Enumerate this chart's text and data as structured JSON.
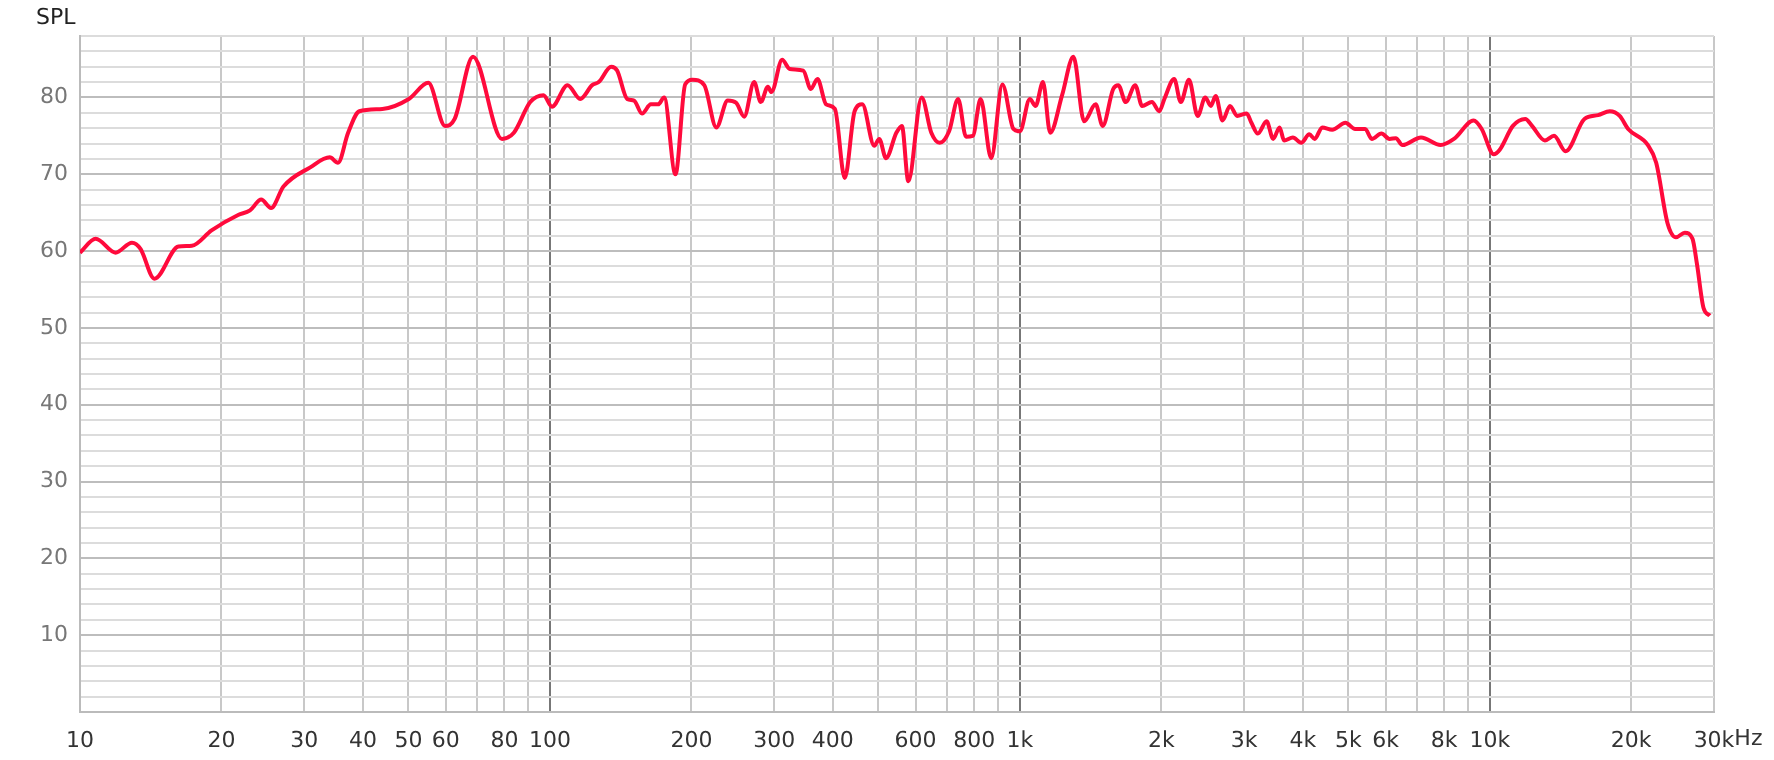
{
  "chart_data": {
    "type": "line",
    "ylabel": "SPL",
    "log": "x",
    "grid": true,
    "legend": false,
    "marker": "none",
    "line_style": "solid",
    "xlim": [
      10,
      30000
    ],
    "xticks": [
      {
        "value": 10,
        "label": "10"
      },
      {
        "value": 20,
        "label": "20"
      },
      {
        "value": 30,
        "label": "30"
      },
      {
        "value": 40,
        "label": "40"
      },
      {
        "value": 50,
        "label": "50"
      },
      {
        "value": 60,
        "label": "60"
      },
      {
        "value": 70,
        "label": null
      },
      {
        "value": 80,
        "label": "80"
      },
      {
        "value": 90,
        "label": null
      },
      {
        "value": 100,
        "label": "100"
      },
      {
        "value": 200,
        "label": "200"
      },
      {
        "value": 300,
        "label": "300"
      },
      {
        "value": 400,
        "label": "400"
      },
      {
        "value": 500,
        "label": null
      },
      {
        "value": 600,
        "label": "600"
      },
      {
        "value": 700,
        "label": null
      },
      {
        "value": 800,
        "label": "800"
      },
      {
        "value": 900,
        "label": null
      },
      {
        "value": 1000,
        "label": "1k"
      },
      {
        "value": 2000,
        "label": "2k"
      },
      {
        "value": 3000,
        "label": "3k"
      },
      {
        "value": 4000,
        "label": "4k"
      },
      {
        "value": 5000,
        "label": "5k"
      },
      {
        "value": 6000,
        "label": "6k"
      },
      {
        "value": 7000,
        "label": null
      },
      {
        "value": 8000,
        "label": "8k"
      },
      {
        "value": 9000,
        "label": null
      },
      {
        "value": 10000,
        "label": "10k"
      },
      {
        "value": 20000,
        "label": "20k"
      },
      {
        "value": 30000,
        "label": "30k"
      }
    ],
    "xlabel": "Hz",
    "ylim": [
      0,
      88
    ],
    "yticks": [
      {
        "value": 0,
        "label": null
      },
      {
        "value": 2,
        "label": null
      },
      {
        "value": 4,
        "label": null
      },
      {
        "value": 6,
        "label": null
      },
      {
        "value": 8,
        "label": null
      },
      10,
      {
        "value": 12,
        "label": null
      },
      {
        "value": 14,
        "label": null
      },
      {
        "value": 16,
        "label": null
      },
      {
        "value": 18,
        "label": null
      },
      20,
      {
        "value": 22,
        "label": null
      },
      {
        "value": 24,
        "label": null
      },
      {
        "value": 26,
        "label": null
      },
      {
        "value": 28,
        "label": null
      },
      30,
      {
        "value": 32,
        "label": null
      },
      {
        "value": 34,
        "label": null
      },
      {
        "value": 36,
        "label": null
      },
      {
        "value": 38,
        "label": null
      },
      40,
      {
        "value": 42,
        "label": null
      },
      {
        "value": 44,
        "label": null
      },
      {
        "value": 46,
        "label": null
      },
      {
        "value": 48,
        "label": null
      },
      50,
      {
        "value": 52,
        "label": null
      },
      {
        "value": 54,
        "label": null
      },
      {
        "value": 56,
        "label": null
      },
      {
        "value": 58,
        "label": null
      },
      60,
      {
        "value": 62,
        "label": null
      },
      {
        "value": 64,
        "label": null
      },
      {
        "value": 66,
        "label": null
      },
      {
        "value": 68,
        "label": null
      },
      70,
      {
        "value": 72,
        "label": null
      },
      {
        "value": 74,
        "label": null
      },
      {
        "value": 76,
        "label": null
      },
      {
        "value": 78,
        "label": null
      },
      80,
      {
        "value": 82,
        "label": null
      },
      {
        "value": 84,
        "label": null
      },
      {
        "value": 86,
        "label": null
      },
      {
        "value": 88,
        "label": null
      }
    ],
    "series": [
      {
        "color": "#ff0a3c",
        "x": [
          10,
          10.8,
          11.9,
          12.9,
          13.45,
          14.4,
          16.2,
          17.3,
          19.05,
          21.7,
          23,
          24.3,
          25.5,
          27.1,
          30.9,
          34,
          35.4,
          37.2,
          39.3,
          44,
          50.1,
          55.1,
          59.8,
          62.7,
          68.6,
          79.1,
          83.8,
          90.8,
          96.9,
          101,
          109,
          116,
          123,
          127,
          135,
          139,
          146,
          151,
          157,
          164,
          170,
          175,
          185,
          194,
          201,
          213,
          226,
          239,
          249,
          259,
          272,
          281,
          291,
          296,
          312,
          324,
          346,
          359,
          371,
          387,
          404,
          424,
          445,
          462,
          490,
          502,
          519,
          546,
          561,
          579,
          618,
          648,
          675,
          707,
          739,
          768,
          794,
          825,
          869,
          918,
          969,
          1000,
          1050,
          1080,
          1120,
          1160,
          1230,
          1300,
          1370,
          1450,
          1500,
          1580,
          1620,
          1680,
          1760,
          1820,
          1910,
          1980,
          2030,
          2130,
          2200,
          2290,
          2390,
          2480,
          2550,
          2610,
          2700,
          2800,
          2900,
          3040,
          3110,
          3210,
          3350,
          3460,
          3570,
          3650,
          3810,
          3970,
          4130,
          4240,
          4400,
          4620,
          4930,
          5170,
          5430,
          5610,
          5880,
          6120,
          6310,
          6520,
          7140,
          7860,
          8390,
          9240,
          9610,
          10200,
          10500,
          11200,
          11900,
          12300,
          13100,
          13700,
          14500,
          15900,
          17000,
          18000,
          18900,
          19700,
          21700,
          22600,
          23900,
          24900,
          26000,
          27000,
          27600,
          28500,
          29400
        ],
        "values": [
          59.8,
          61.6,
          59.8,
          61.1,
          60.3,
          56.4,
          60.6,
          60.7,
          62.7,
          64.7,
          65.3,
          66.7,
          65.6,
          68.4,
          70.9,
          72.2,
          71.5,
          75.4,
          78.2,
          78.5,
          79.8,
          81.9,
          76.3,
          77.2,
          85.3,
          74.6,
          75.4,
          79.4,
          80.3,
          78.8,
          81.6,
          79.8,
          81.6,
          82,
          84,
          83.5,
          79.8,
          79.6,
          77.9,
          79.1,
          79.1,
          80,
          70,
          81.7,
          82.3,
          81.6,
          76.1,
          79.6,
          79.3,
          77.5,
          82,
          79.4,
          81.4,
          80.7,
          84.9,
          83.7,
          83.5,
          81.1,
          82.4,
          79.1,
          78.5,
          69.5,
          78.2,
          79.1,
          73.7,
          74.6,
          72.1,
          75.4,
          76.3,
          69.1,
          80,
          75.4,
          74.1,
          75.6,
          79.8,
          74.9,
          75,
          79.8,
          72.1,
          81.7,
          75.9,
          75.6,
          79.8,
          78.9,
          82,
          75.4,
          80.3,
          85.3,
          76.9,
          79.1,
          76.3,
          81.1,
          81.6,
          79.4,
          81.6,
          78.9,
          79.4,
          78.2,
          79.8,
          82.4,
          79.4,
          82.3,
          77.6,
          80,
          78.9,
          80.2,
          77,
          78.9,
          77.6,
          77.9,
          76.7,
          75.3,
          76.9,
          74.6,
          76.1,
          74.4,
          74.8,
          74.1,
          75.2,
          74.6,
          76.1,
          75.8,
          76.7,
          75.9,
          75.9,
          74.6,
          75.3,
          74.6,
          74.7,
          73.8,
          74.8,
          73.8,
          74.6,
          77,
          75.9,
          72.6,
          73.2,
          76.3,
          77.2,
          76.3,
          74.4,
          75,
          73,
          77.2,
          77.7,
          78.2,
          77.6,
          75.9,
          73.8,
          71.5,
          63.6,
          61.8,
          62.4,
          61.6,
          58.3,
          52.6,
          51.6
        ]
      }
    ]
  }
}
